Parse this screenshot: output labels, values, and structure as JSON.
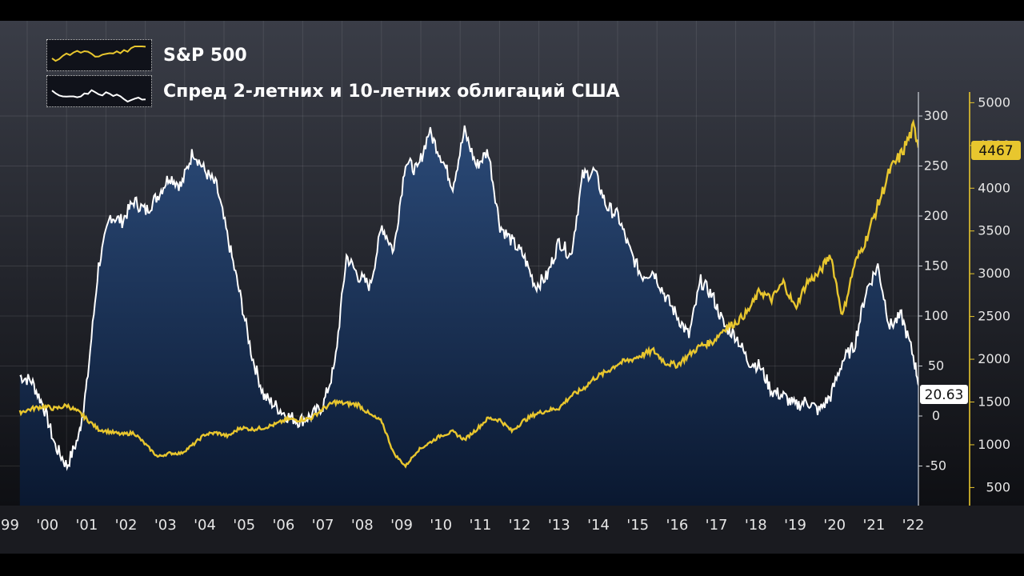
{
  "legend": [
    {
      "label": "S&P 500",
      "color": "#e8c62e"
    },
    {
      "label": "Спред 2-летних и 10-летних облигаций США",
      "color": "#ffffff"
    }
  ],
  "callouts": {
    "sp500_last": "4467",
    "spread_last": "20.63"
  },
  "colors": {
    "sp500": "#e8c62e",
    "spread": "#ffffff",
    "area_top": "#2b4a78",
    "area_bottom": "#0a1830",
    "bg_top": "#3a3d47",
    "bg_bottom": "#0e0f13"
  },
  "chart_data": {
    "type": "line",
    "title": "",
    "x_tick_labels": [
      "'99",
      "'00",
      "'01",
      "'02",
      "'03",
      "'04",
      "'05",
      "'06",
      "'07",
      "'08",
      "'09",
      "'10",
      "'11",
      "'12",
      "'13",
      "'14",
      "'15",
      "'16",
      "'17",
      "'18",
      "'19",
      "'20",
      "'21",
      "'22"
    ],
    "x": [
      1999.3,
      1999.6,
      1999.9,
      2000.2,
      2000.5,
      2000.8,
      2001.0,
      2001.3,
      2001.6,
      2001.9,
      2002.2,
      2002.5,
      2002.8,
      2003.1,
      2003.4,
      2003.7,
      2004.0,
      2004.3,
      2004.6,
      2004.9,
      2005.2,
      2005.5,
      2005.8,
      2006.1,
      2006.4,
      2006.7,
      2007.0,
      2007.3,
      2007.6,
      2007.9,
      2008.2,
      2008.5,
      2008.8,
      2009.1,
      2009.4,
      2009.7,
      2010.0,
      2010.3,
      2010.6,
      2010.9,
      2011.2,
      2011.5,
      2011.8,
      2012.1,
      2012.4,
      2012.7,
      2013.0,
      2013.3,
      2013.6,
      2013.9,
      2014.2,
      2014.5,
      2014.8,
      2015.1,
      2015.4,
      2015.7,
      2016.0,
      2016.3,
      2016.6,
      2016.9,
      2017.2,
      2017.5,
      2017.8,
      2018.1,
      2018.4,
      2018.7,
      2019.0,
      2019.3,
      2019.6,
      2019.9,
      2020.2,
      2020.5,
      2020.8,
      2021.1,
      2021.4,
      2021.7,
      2022.0,
      2022.2
    ],
    "series": [
      {
        "name": "Спред 2-летних и 10-летних облигаций США",
        "axis": "left",
        "values": [
          40,
          35,
          10,
          -30,
          -50,
          -20,
          30,
          150,
          200,
          195,
          215,
          205,
          220,
          240,
          230,
          265,
          245,
          230,
          175,
          120,
          60,
          20,
          10,
          0,
          -5,
          0,
          10,
          50,
          160,
          140,
          130,
          190,
          165,
          255,
          245,
          285,
          260,
          230,
          285,
          250,
          265,
          190,
          175,
          160,
          130,
          140,
          175,
          160,
          240,
          245,
          210,
          200,
          165,
          140,
          145,
          120,
          100,
          80,
          135,
          120,
          90,
          80,
          55,
          50,
          25,
          20,
          10,
          15,
          5,
          20,
          55,
          70,
          125,
          150,
          90,
          100,
          60,
          20.63
        ]
      },
      {
        "name": "S&P 500",
        "axis": "right",
        "values": [
          1380,
          1420,
          1450,
          1420,
          1460,
          1380,
          1300,
          1180,
          1150,
          1120,
          1140,
          1000,
          860,
          900,
          900,
          1000,
          1120,
          1140,
          1100,
          1200,
          1180,
          1200,
          1240,
          1300,
          1290,
          1310,
          1420,
          1500,
          1480,
          1470,
          1350,
          1270,
          900,
          750,
          930,
          1020,
          1110,
          1150,
          1060,
          1180,
          1310,
          1290,
          1160,
          1280,
          1360,
          1400,
          1430,
          1570,
          1650,
          1780,
          1850,
          1950,
          1990,
          2050,
          2100,
          1960,
          1930,
          2050,
          2160,
          2200,
          2360,
          2430,
          2560,
          2800,
          2700,
          2900,
          2600,
          2900,
          3000,
          3230,
          2500,
          3100,
          3400,
          3800,
          4200,
          4400,
          4700,
          4467
        ]
      }
    ],
    "y_left": {
      "ticks": [
        -50,
        0,
        50,
        100,
        150,
        200,
        250,
        300
      ],
      "range": [
        -70,
        320
      ]
    },
    "y_right": {
      "ticks": [
        500,
        1000,
        1500,
        2000,
        2500,
        3000,
        3500,
        4000,
        4500,
        5000
      ],
      "range": [
        300,
        5150
      ],
      "tick_labels": [
        "500",
        "1000",
        "1500",
        "2000",
        "2500",
        "3000",
        "3500",
        "4000",
        "4500",
        "5000"
      ]
    },
    "grid": true,
    "legend_position": "top-left"
  }
}
